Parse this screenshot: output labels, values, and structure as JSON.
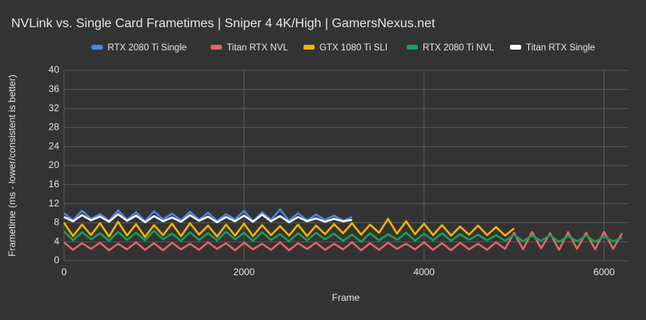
{
  "chart_data": {
    "type": "line",
    "title": "NVLink vs. Single Card Frametimes | Sniper 4 4K/High | GamersNexus.net",
    "x_label": "Frame",
    "y_label": "Frametime (ms - lower/consistent is better)",
    "x": [
      0,
      100,
      200,
      300,
      400,
      500,
      600,
      700,
      800,
      900,
      1000,
      1100,
      1200,
      1300,
      1400,
      1500,
      1600,
      1700,
      1800,
      1900,
      2000,
      2100,
      2200,
      2300,
      2400,
      2500,
      2600,
      2700,
      2800,
      2900,
      3000,
      3100,
      3200,
      3300,
      3400,
      3500,
      3600,
      3700,
      3800,
      3900,
      4000,
      4100,
      4200,
      4300,
      4400,
      4500,
      4600,
      4700,
      4800,
      4900,
      5000,
      5100,
      5200,
      5300,
      5400,
      5500,
      5600,
      5700,
      5800,
      5900,
      6000,
      6100,
      6200
    ],
    "xlim": [
      0,
      6270
    ],
    "xticks": [
      0,
      2000,
      4000,
      6000
    ],
    "ylim": [
      0,
      40
    ],
    "yticks": [
      0,
      4,
      8,
      12,
      16,
      20,
      24,
      28,
      32,
      36,
      40
    ],
    "grid": true,
    "legend": "top",
    "series": [
      {
        "name": "RTX 2080 Ti Single",
        "color": "#4a86e8",
        "values": [
          10,
          8.5,
          10.5,
          8.8,
          9.8,
          8.4,
          10.6,
          8.6,
          10.2,
          8.3,
          10.4,
          8.7,
          9.9,
          8.5,
          10.3,
          8.6,
          10.1,
          8.4,
          9.8,
          8.7,
          10.5,
          8.3,
          10.2,
          8.6,
          10.8,
          8.4,
          10.0,
          8.5,
          9.7,
          8.6,
          9.5,
          8.4,
          9.2,
          null,
          null,
          null,
          null,
          null,
          null,
          null,
          null,
          null,
          null,
          null,
          null,
          null,
          null,
          null,
          null,
          null,
          null,
          null,
          null,
          null,
          null,
          null,
          null,
          null,
          null,
          null,
          null,
          null,
          null
        ]
      },
      {
        "name": "Titan RTX NVL",
        "color": "#e06666",
        "values": [
          3.9,
          2.3,
          3.7,
          2.5,
          3.8,
          2.2,
          3.6,
          2.4,
          3.9,
          2.3,
          3.7,
          2.2,
          3.8,
          2.4,
          3.6,
          2.3,
          3.9,
          2.5,
          3.7,
          2.2,
          3.8,
          2.4,
          3.6,
          2.3,
          3.9,
          2.2,
          3.7,
          2.5,
          3.8,
          2.3,
          3.6,
          2.4,
          3.9,
          2.2,
          3.7,
          2.3,
          3.8,
          2.5,
          3.6,
          2.4,
          3.9,
          2.3,
          3.7,
          2.2,
          3.8,
          2.4,
          3.6,
          2.3,
          3.9,
          2.5,
          5.9,
          2.4,
          6.1,
          2.6,
          5.8,
          2.3,
          6.0,
          2.5,
          5.9,
          2.4,
          6.1,
          2.5,
          5.8
        ]
      },
      {
        "name": "GTX 1080 Ti SLI",
        "color": "#f1b500",
        "values": [
          8,
          5.2,
          7.6,
          5.4,
          7.9,
          5.1,
          8.2,
          5.3,
          7.7,
          5.0,
          7.5,
          5.4,
          7.8,
          5.2,
          7.9,
          5.5,
          7.4,
          5.1,
          7.6,
          5.3,
          7.8,
          5.2,
          7.5,
          5.4,
          7.3,
          5.3,
          7.6,
          5.2,
          7.4,
          5.6,
          7.7,
          5.8,
          7.9,
          5.5,
          7.6,
          5.9,
          8.8,
          5.7,
          8.3,
          5.6,
          7.8,
          5.4,
          7.5,
          5.3,
          7.2,
          5.5,
          7.4,
          5.4,
          7.1,
          5.3,
          6.8,
          null,
          null,
          null,
          null,
          null,
          null,
          null,
          null,
          null,
          null,
          null,
          null
        ]
      },
      {
        "name": "RTX 2080 Ti NVL",
        "color": "#16a05d",
        "values": [
          6.2,
          4.3,
          6.0,
          4.5,
          5.8,
          4.2,
          6.1,
          4.4,
          5.9,
          4.3,
          6.3,
          4.5,
          5.7,
          4.2,
          6.0,
          4.4,
          5.8,
          4.3,
          6.1,
          4.5,
          5.9,
          4.2,
          6.0,
          4.4,
          5.6,
          4.1,
          5.8,
          4.3,
          5.9,
          4.5,
          5.7,
          4.2,
          5.5,
          4.0,
          5.8,
          4.3,
          5.6,
          4.4,
          5.9,
          4.2,
          5.7,
          4.3,
          5.8,
          4.2,
          5.6,
          4.4,
          5.5,
          4.3,
          5.4,
          4.2,
          5.5,
          4.1,
          5.3,
          4.2,
          5.4,
          4.0,
          5.2,
          4.1,
          5.3,
          4.0,
          5.1,
          4.1,
          4.8
        ]
      },
      {
        "name": "Titan RTX Single",
        "color": "#ffffff",
        "values": [
          9.2,
          8.3,
          9.6,
          8.5,
          9.3,
          8.2,
          9.8,
          8.4,
          9.5,
          8.1,
          9.4,
          8.3,
          9.1,
          8.2,
          9.6,
          8.4,
          9.3,
          8.1,
          9.2,
          8.3,
          9.5,
          8.2,
          9.7,
          8.3,
          9.4,
          8.1,
          9.2,
          8.3,
          8.9,
          8.2,
          8.8,
          8.3,
          8.6,
          null,
          null,
          null,
          null,
          null,
          null,
          null,
          null,
          null,
          null,
          null,
          null,
          null,
          null,
          null,
          null,
          null,
          null,
          null,
          null,
          null,
          null,
          null,
          null,
          null,
          null,
          null,
          null,
          null,
          null
        ]
      }
    ]
  }
}
